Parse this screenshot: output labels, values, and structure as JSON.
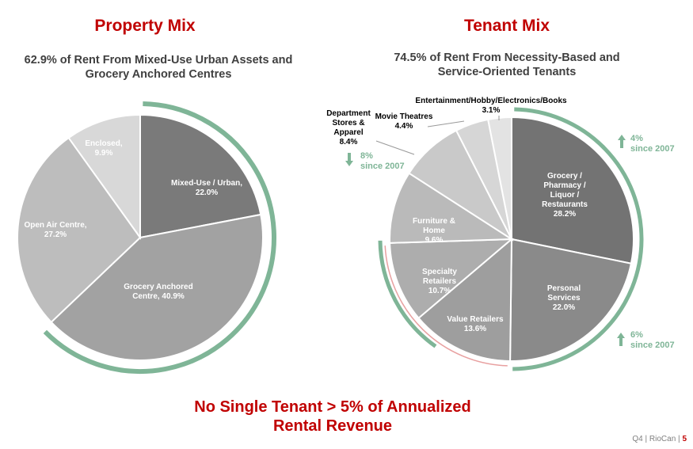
{
  "property_title": "Property Mix",
  "property_subtitle_1": "62.9% of Rent From Mixed-Use Urban Assets and",
  "property_subtitle_2": "Grocery Anchored Centres",
  "tenant_title": "Tenant Mix",
  "tenant_subtitle_1": "74.5% of Rent From Necessity-Based and",
  "tenant_subtitle_2": "Service-Oriented Tenants",
  "bottom_line_1": "No Single Tenant > 5% of Annualized",
  "bottom_line_2": "Rental Revenue",
  "footer": {
    "quarter": "Q4",
    "company": "RioCan",
    "page": "5",
    "sep": "|"
  },
  "colors": {
    "accent_red": "#c00000",
    "arc_green": "#7fb597",
    "arc_pink": "#e8a0a0"
  },
  "trends": {
    "department": {
      "arrow": "down",
      "value": "8%",
      "since": "since 2007"
    },
    "grocery": {
      "arrow": "up",
      "value": "4%",
      "since": "since 2007"
    },
    "personal": {
      "arrow": "up",
      "value": "6%",
      "since": "since 2007"
    }
  },
  "chart_data": [
    {
      "type": "pie",
      "title": "Property Mix",
      "slices": [
        {
          "label": [
            "Mixed-Use / Urban,",
            "22.0%"
          ],
          "name": "Mixed-Use / Urban",
          "value": 22.0,
          "color": "#7a7a7a"
        },
        {
          "label": [
            "Grocery Anchored",
            "Centre, 40.9%"
          ],
          "name": "Grocery Anchored Centre",
          "value": 40.9,
          "color": "#a2a2a2"
        },
        {
          "label": [
            "Open Air Centre,",
            "27.2%"
          ],
          "name": "Open Air Centre",
          "value": 27.2,
          "color": "#bdbdbd"
        },
        {
          "label": [
            "Enclosed,",
            "9.9%"
          ],
          "name": "Enclosed",
          "value": 9.9,
          "color": "#d8d8d8"
        }
      ]
    },
    {
      "type": "pie",
      "title": "Tenant Mix",
      "slices": [
        {
          "label": [
            "Grocery /",
            "Pharmacy /",
            "Liquor /",
            "Restaurants",
            "28.2%"
          ],
          "name": "Grocery / Pharmacy / Liquor / Restaurants",
          "value": 28.2,
          "color": "#737373"
        },
        {
          "label": [
            "Personal",
            "Services",
            "22.0%"
          ],
          "name": "Personal Services",
          "value": 22.0,
          "color": "#8a8a8a"
        },
        {
          "label": [
            "Value Retailers",
            "13.6%"
          ],
          "name": "Value Retailers",
          "value": 13.6,
          "color": "#9e9e9e"
        },
        {
          "label": [
            "Specialty",
            "Retailers",
            "10.7%"
          ],
          "name": "Specialty Retailers",
          "value": 10.7,
          "color": "#adadad"
        },
        {
          "label": [
            "Furniture &",
            "Home",
            "9.6%"
          ],
          "name": "Furniture & Home",
          "value": 9.6,
          "color": "#bababa"
        },
        {
          "label": [
            "Department",
            "Stores &",
            "Apparel",
            "8.4%"
          ],
          "name": "Department Stores & Apparel",
          "value": 8.4,
          "color": "#c9c9c9"
        },
        {
          "label": [
            "Movie Theatres",
            "4.4%"
          ],
          "name": "Movie Theatres",
          "value": 4.4,
          "color": "#d6d6d6"
        },
        {
          "label": [
            "Entertainment/Hobby/Electronics/Books",
            "3.1%"
          ],
          "name": "Entertainment/Hobby/Electronics/Books",
          "value": 3.1,
          "color": "#e3e3e3"
        }
      ]
    }
  ]
}
